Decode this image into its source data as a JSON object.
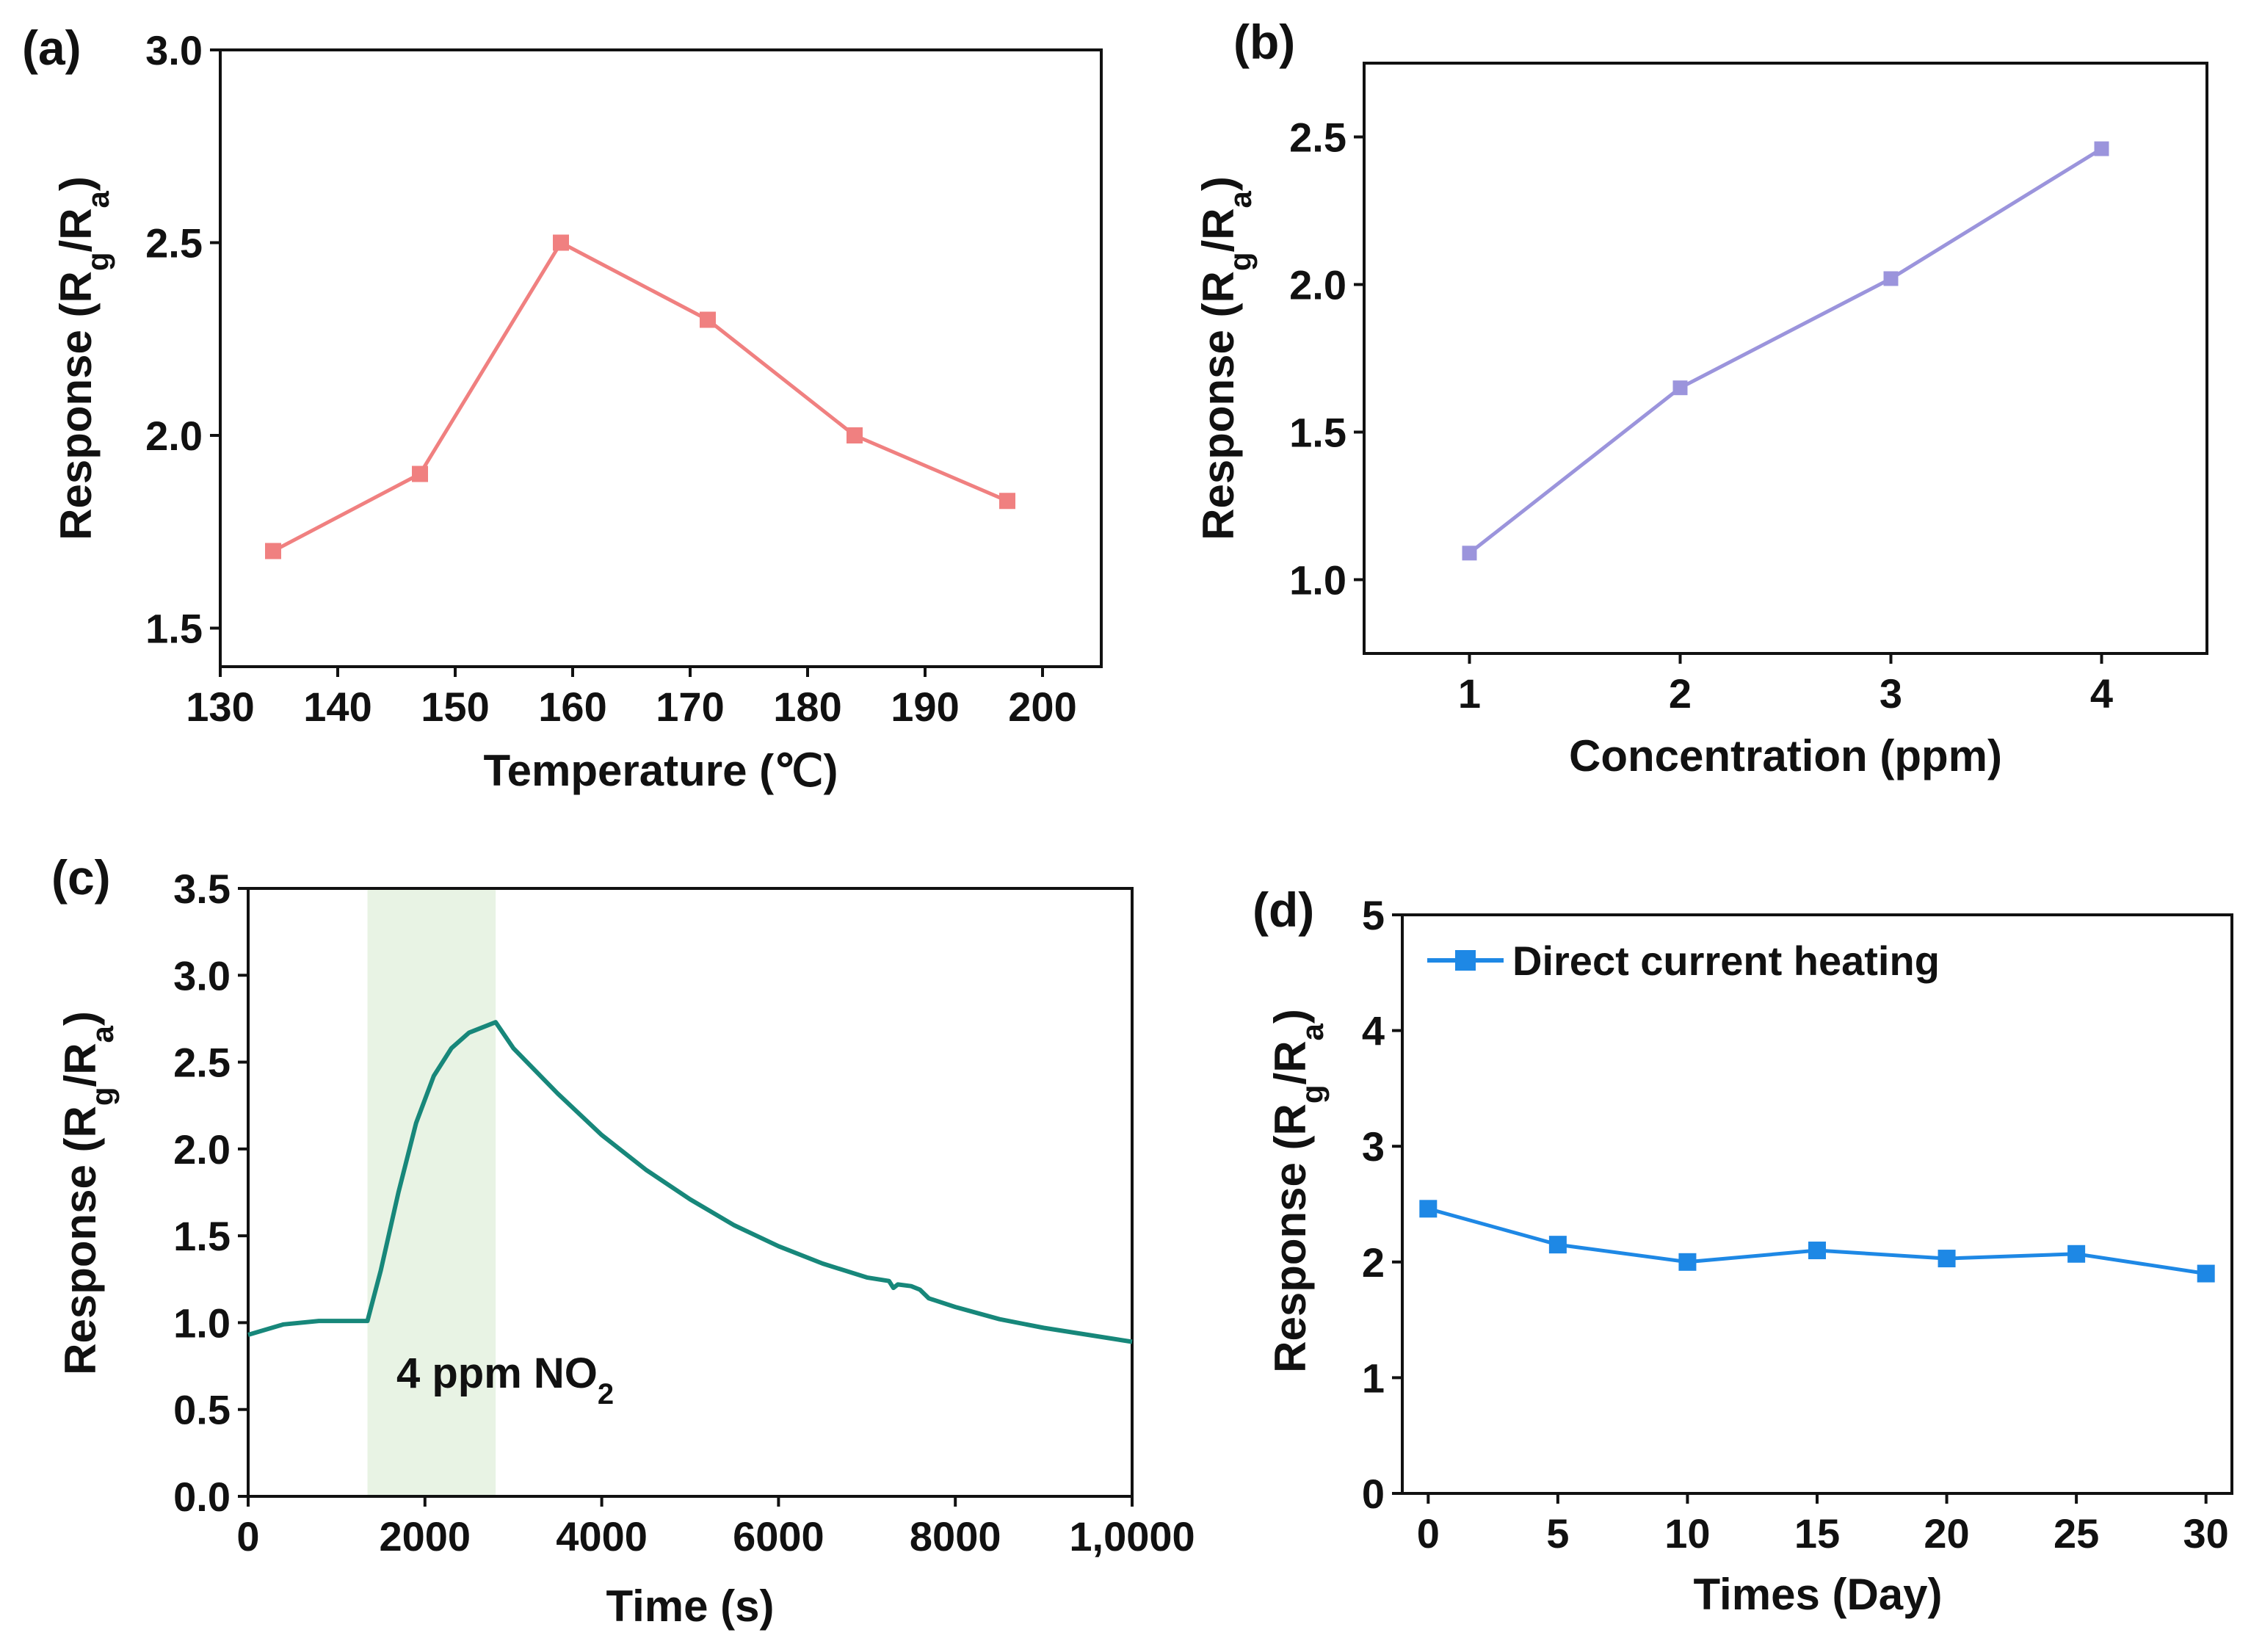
{
  "chart_data": [
    {
      "panel": "(a)",
      "type": "line",
      "xlabel": "Temperature (℃)",
      "ylabel": "Response (R_g/R_a)",
      "xlim": [
        130,
        205
      ],
      "ylim": [
        1.4,
        3.0
      ],
      "xticks": [
        "130",
        "140",
        "150",
        "160",
        "170",
        "180",
        "190",
        "200"
      ],
      "yticks": [
        "1.5",
        "2.0",
        "2.5",
        "3.0"
      ],
      "color": "#f08080",
      "series": [
        {
          "name": "",
          "x": [
            134.5,
            147,
            159,
            171.5,
            184,
            197
          ],
          "y": [
            1.7,
            1.9,
            2.5,
            2.3,
            2.0,
            1.83
          ]
        }
      ]
    },
    {
      "panel": "(b)",
      "type": "line",
      "xlabel": "Concentration (ppm)",
      "ylabel": "Response (R_g/R_a)",
      "xlim": [
        0.5,
        4.5
      ],
      "ylim": [
        0.75,
        2.75
      ],
      "xticks": [
        "1",
        "2",
        "3",
        "4"
      ],
      "yticks": [
        "1.0",
        "1.5",
        "2.0",
        "2.5"
      ],
      "color": "#9b94dc",
      "series": [
        {
          "name": "",
          "x": [
            1,
            2,
            3,
            4
          ],
          "y": [
            1.09,
            1.65,
            2.02,
            2.46
          ]
        }
      ]
    },
    {
      "panel": "(c)",
      "type": "line",
      "xlabel": "Time (s)",
      "ylabel": "Response (R_g/R_a)",
      "xlim": [
        0,
        10000
      ],
      "ylim": [
        0.0,
        3.5
      ],
      "xticks": [
        "0",
        "2000",
        "4000",
        "6000",
        "8000",
        "1,0000"
      ],
      "yticks": [
        "0.0",
        "0.5",
        "1.0",
        "1.5",
        "2.0",
        "2.5",
        "3.0",
        "3.5"
      ],
      "color": "#17877a",
      "highlight": {
        "x_start": 1350,
        "x_end": 2800,
        "color": "#e8f3e4"
      },
      "annotation": {
        "text": "4 ppm NO",
        "subscript": "2",
        "x": 1700,
        "y": 0.65
      },
      "series": [
        {
          "name": "",
          "x": [
            0,
            400,
            800,
            1200,
            1350,
            1500,
            1700,
            1900,
            2100,
            2300,
            2500,
            2700,
            2800,
            3000,
            3500,
            4000,
            4500,
            5000,
            5500,
            6000,
            6500,
            7000,
            7250,
            7300,
            7350,
            7500,
            7600,
            7700,
            8000,
            8500,
            9000,
            9500,
            10000
          ],
          "y": [
            0.93,
            0.99,
            1.01,
            1.01,
            1.01,
            1.3,
            1.75,
            2.15,
            2.42,
            2.58,
            2.67,
            2.71,
            2.73,
            2.58,
            2.32,
            2.08,
            1.88,
            1.71,
            1.56,
            1.44,
            1.34,
            1.26,
            1.24,
            1.2,
            1.22,
            1.21,
            1.19,
            1.14,
            1.09,
            1.02,
            0.97,
            0.93,
            0.89
          ]
        }
      ]
    },
    {
      "panel": "(d)",
      "type": "line",
      "xlabel": "Times (Day)",
      "ylabel": "Response (R_g/R_a)",
      "xlim": [
        -1,
        31
      ],
      "ylim": [
        0,
        5
      ],
      "xticks": [
        "0",
        "5",
        "10",
        "15",
        "20",
        "25",
        "30"
      ],
      "yticks": [
        "0",
        "1",
        "2",
        "3",
        "4",
        "5"
      ],
      "color": "#1e88e5",
      "legend": "top-left",
      "series": [
        {
          "name": "Direct current heating",
          "x": [
            0,
            5,
            10,
            15,
            20,
            25,
            30
          ],
          "y": [
            2.46,
            2.15,
            2.0,
            2.1,
            2.03,
            2.07,
            1.9
          ]
        }
      ]
    }
  ]
}
